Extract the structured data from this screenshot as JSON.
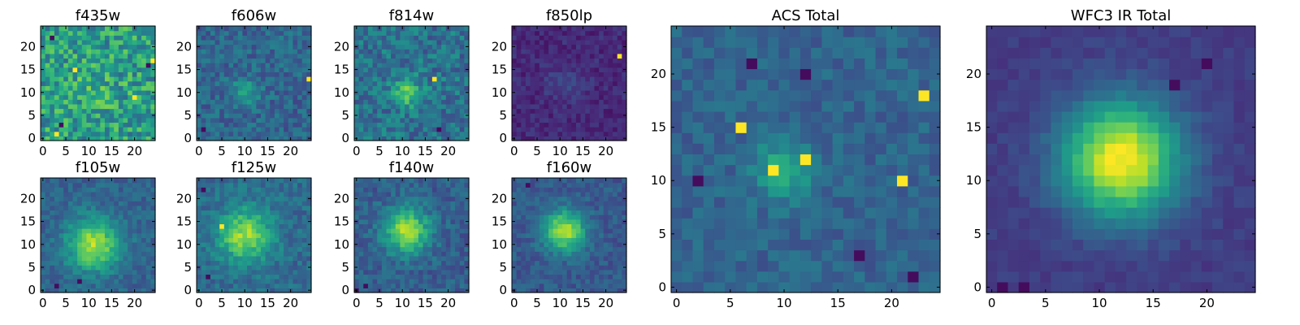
{
  "chart_data": {
    "type": "heatmap",
    "colormap": "viridis",
    "grid": false,
    "panels": [
      {
        "title": "f435w",
        "size": 25,
        "xticks": [
          0,
          5,
          10,
          15,
          20
        ],
        "yticks": [
          0,
          5,
          10,
          15,
          20
        ],
        "xlim": [
          0,
          24
        ],
        "ylim": [
          0,
          24
        ],
        "noise": 0.22,
        "base": 0.55,
        "peak": 0.08,
        "cx": 11,
        "cy": 10,
        "sigma": 4,
        "hot": [
          [
            24,
            17
          ],
          [
            3,
            1
          ],
          [
            7,
            15
          ],
          [
            20,
            9
          ]
        ],
        "cold": [
          [
            23,
            16
          ],
          [
            4,
            3
          ],
          [
            2,
            22
          ]
        ]
      },
      {
        "title": "f606w",
        "size": 25,
        "xticks": [
          0,
          5,
          10,
          15,
          20
        ],
        "yticks": [
          0,
          5,
          10,
          15,
          20
        ],
        "xlim": [
          0,
          24
        ],
        "ylim": [
          0,
          24
        ],
        "noise": 0.12,
        "base": 0.33,
        "peak": 0.3,
        "cx": 10,
        "cy": 10,
        "sigma": 2,
        "hot": [
          [
            24,
            13
          ]
        ],
        "cold": [
          [
            1,
            2
          ]
        ]
      },
      {
        "title": "f814w",
        "size": 25,
        "xticks": [
          0,
          5,
          10,
          15,
          20
        ],
        "yticks": [
          0,
          5,
          10,
          15,
          20
        ],
        "xlim": [
          0,
          24
        ],
        "ylim": [
          0,
          24
        ],
        "noise": 0.15,
        "base": 0.38,
        "peak": 0.35,
        "cx": 11,
        "cy": 10,
        "sigma": 2.2,
        "hot": [
          [
            17,
            13
          ]
        ],
        "cold": [
          [
            18,
            2
          ]
        ]
      },
      {
        "title": "f850lp",
        "size": 25,
        "xticks": [
          0,
          5,
          10,
          15,
          20
        ],
        "yticks": [
          0,
          5,
          10,
          15,
          20
        ],
        "xlim": [
          0,
          24
        ],
        "ylim": [
          0,
          24
        ],
        "noise": 0.07,
        "base": 0.12,
        "peak": 0.08,
        "cx": 11,
        "cy": 12,
        "sigma": 3,
        "hot": [
          [
            23,
            18
          ]
        ],
        "cold": []
      },
      {
        "title": "f105w",
        "size": 25,
        "xticks": [
          0,
          5,
          10,
          15,
          20
        ],
        "yticks": [
          0,
          5,
          10,
          15,
          20
        ],
        "xlim": [
          0,
          24
        ],
        "ylim": [
          0,
          24
        ],
        "noise": 0.09,
        "base": 0.32,
        "peak": 0.55,
        "cx": 11,
        "cy": 10,
        "sigma": 4,
        "hot": [],
        "cold": [
          [
            8,
            2
          ],
          [
            3,
            1
          ]
        ]
      },
      {
        "title": "f125w",
        "size": 25,
        "xticks": [
          0,
          5,
          10,
          15,
          20
        ],
        "yticks": [
          0,
          5,
          10,
          15,
          20
        ],
        "xlim": [
          0,
          24
        ],
        "ylim": [
          0,
          24
        ],
        "noise": 0.1,
        "base": 0.35,
        "peak": 0.5,
        "cx": 10,
        "cy": 12,
        "sigma": 4,
        "hot": [
          [
            5,
            14
          ]
        ],
        "cold": [
          [
            2,
            3
          ],
          [
            1,
            22
          ]
        ]
      },
      {
        "title": "f140w",
        "size": 25,
        "xticks": [
          0,
          5,
          10,
          15,
          20
        ],
        "yticks": [
          0,
          5,
          10,
          15,
          20
        ],
        "xlim": [
          0,
          24
        ],
        "ylim": [
          0,
          24
        ],
        "noise": 0.1,
        "base": 0.3,
        "peak": 0.55,
        "cx": 11,
        "cy": 13,
        "sigma": 3.5,
        "hot": [],
        "cold": [
          [
            0,
            0
          ],
          [
            2,
            1
          ]
        ]
      },
      {
        "title": "f160w",
        "size": 25,
        "xticks": [
          0,
          5,
          10,
          15,
          20
        ],
        "yticks": [
          0,
          5,
          10,
          15,
          20
        ],
        "xlim": [
          0,
          24
        ],
        "ylim": [
          0,
          24
        ],
        "noise": 0.08,
        "base": 0.28,
        "peak": 0.6,
        "cx": 11,
        "cy": 13,
        "sigma": 3.2,
        "hot": [],
        "cold": [
          [
            3,
            23
          ]
        ]
      },
      {
        "title": "ACS Total",
        "size": 25,
        "xticks": [
          0,
          5,
          10,
          15,
          20
        ],
        "yticks": [
          0,
          5,
          10,
          15,
          20
        ],
        "xlim": [
          0,
          24
        ],
        "ylim": [
          0,
          24
        ],
        "noise": 0.08,
        "base": 0.32,
        "peak": 0.3,
        "cx": 10,
        "cy": 11,
        "sigma": 2,
        "hot": [
          [
            23,
            18
          ],
          [
            9,
            11
          ],
          [
            12,
            12
          ],
          [
            6,
            15
          ],
          [
            21,
            10
          ]
        ],
        "cold": [
          [
            7,
            21
          ],
          [
            12,
            20
          ],
          [
            22,
            1
          ],
          [
            2,
            10
          ],
          [
            17,
            3
          ]
        ]
      },
      {
        "title": "WFC3 IR Total",
        "size": 25,
        "xticks": [
          0,
          5,
          10,
          15,
          20
        ],
        "yticks": [
          0,
          5,
          10,
          15,
          20
        ],
        "xlim": [
          0,
          24
        ],
        "ylim": [
          0,
          24
        ],
        "noise": 0.04,
        "base": 0.18,
        "peak": 0.82,
        "cx": 12,
        "cy": 12,
        "sigma": 3.8,
        "hot": [],
        "cold": [
          [
            1,
            0
          ],
          [
            3,
            0
          ],
          [
            20,
            21
          ],
          [
            17,
            19
          ]
        ]
      }
    ]
  },
  "colors": {
    "viridis": [
      "#440154",
      "#482878",
      "#3e4989",
      "#31688e",
      "#26828e",
      "#1f9e89",
      "#35b779",
      "#6ece58",
      "#b5de2b",
      "#fde725"
    ]
  }
}
